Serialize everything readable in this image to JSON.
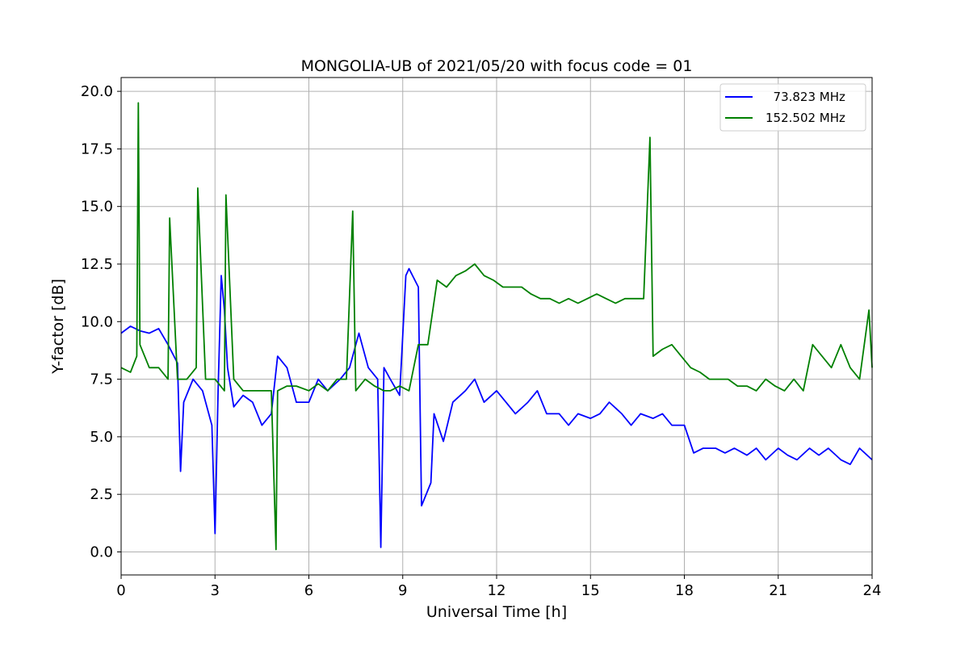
{
  "chart_data": {
    "type": "line",
    "title": "MONGOLIA-UB of 2021/05/20 with focus code = 01",
    "xlabel": "Universal Time [h]",
    "ylabel": "Y-factor [dB]",
    "xlim": [
      0,
      24
    ],
    "ylim": [
      -1.0,
      20.6
    ],
    "xticks": [
      0,
      3,
      6,
      9,
      12,
      15,
      18,
      21,
      24
    ],
    "xtick_labels": [
      "0",
      "3",
      "6",
      "9",
      "12",
      "15",
      "18",
      "21",
      "24"
    ],
    "yticks": [
      0.0,
      2.5,
      5.0,
      7.5,
      10.0,
      12.5,
      15.0,
      17.5,
      20.0
    ],
    "ytick_labels": [
      "0.0",
      "2.5",
      "5.0",
      "7.5",
      "10.0",
      "12.5",
      "15.0",
      "17.5",
      "20.0"
    ],
    "grid": true,
    "legend_position": "top-right",
    "series": [
      {
        "name": "  73.823 MHz",
        "color": "#0000ff",
        "x": [
          0,
          0.3,
          0.6,
          0.9,
          1.2,
          1.5,
          1.8,
          1.9,
          2.0,
          2.3,
          2.6,
          2.9,
          3.0,
          3.1,
          3.2,
          3.3,
          3.4,
          3.6,
          3.9,
          4.2,
          4.5,
          4.8,
          5.0,
          5.3,
          5.6,
          6.0,
          6.3,
          6.6,
          7.0,
          7.3,
          7.6,
          7.9,
          8.2,
          8.3,
          8.4,
          8.6,
          8.9,
          9.1,
          9.2,
          9.5,
          9.6,
          9.9,
          10.0,
          10.3,
          10.6,
          11.0,
          11.3,
          11.6,
          12.0,
          12.3,
          12.6,
          13.0,
          13.3,
          13.6,
          14.0,
          14.3,
          14.6,
          15.0,
          15.3,
          15.6,
          16.0,
          16.3,
          16.6,
          17.0,
          17.3,
          17.6,
          18.0,
          18.3,
          18.6,
          19.0,
          19.3,
          19.6,
          20.0,
          20.3,
          20.6,
          21.0,
          21.3,
          21.6,
          22.0,
          22.3,
          22.6,
          23.0,
          23.3,
          23.6,
          24.0
        ],
        "y": [
          9.5,
          9.8,
          9.6,
          9.5,
          9.7,
          9.0,
          8.2,
          3.5,
          6.5,
          7.5,
          7.0,
          5.5,
          0.8,
          7.0,
          12.0,
          10.5,
          8.0,
          6.3,
          6.8,
          6.5,
          5.5,
          6.0,
          8.5,
          8.0,
          6.5,
          6.5,
          7.5,
          7.0,
          7.5,
          8.0,
          9.5,
          8.0,
          7.5,
          0.2,
          8.0,
          7.5,
          6.8,
          12.0,
          12.3,
          11.5,
          2.0,
          3.0,
          6.0,
          4.8,
          6.5,
          7.0,
          7.5,
          6.5,
          7.0,
          6.5,
          6.0,
          6.5,
          7.0,
          6.0,
          6.0,
          5.5,
          6.0,
          5.8,
          6.0,
          6.5,
          6.0,
          5.5,
          6.0,
          5.8,
          6.0,
          5.5,
          5.5,
          4.3,
          4.5,
          4.5,
          4.3,
          4.5,
          4.2,
          4.5,
          4.0,
          4.5,
          4.2,
          4.0,
          4.5,
          4.2,
          4.5,
          4.0,
          3.8,
          4.5,
          4.0
        ]
      },
      {
        "name": "152.502 MHz",
        "color": "#008000",
        "x": [
          0,
          0.3,
          0.5,
          0.55,
          0.6,
          0.9,
          1.2,
          1.5,
          1.55,
          1.8,
          2.1,
          2.4,
          2.45,
          2.7,
          3.0,
          3.3,
          3.35,
          3.6,
          3.9,
          4.2,
          4.5,
          4.8,
          4.95,
          5.0,
          5.3,
          5.6,
          6.0,
          6.3,
          6.6,
          6.9,
          7.2,
          7.4,
          7.5,
          7.8,
          8.1,
          8.4,
          8.6,
          8.9,
          9.2,
          9.5,
          9.8,
          10.1,
          10.4,
          10.7,
          11.0,
          11.3,
          11.6,
          11.9,
          12.2,
          12.5,
          12.8,
          13.1,
          13.4,
          13.7,
          14.0,
          14.3,
          14.6,
          14.9,
          15.2,
          15.5,
          15.8,
          16.1,
          16.4,
          16.7,
          16.9,
          17.0,
          17.3,
          17.6,
          17.9,
          18.2,
          18.5,
          18.8,
          19.1,
          19.4,
          19.7,
          20.0,
          20.3,
          20.6,
          20.9,
          21.2,
          21.5,
          21.8,
          22.1,
          22.4,
          22.7,
          23.0,
          23.3,
          23.6,
          23.9,
          24.0
        ],
        "y": [
          8.0,
          7.8,
          8.5,
          19.5,
          9.0,
          8.0,
          8.0,
          7.5,
          14.5,
          7.5,
          7.5,
          8.0,
          15.8,
          7.5,
          7.5,
          7.0,
          15.5,
          7.5,
          7.0,
          7.0,
          7.0,
          7.0,
          0.1,
          7.0,
          7.2,
          7.2,
          7.0,
          7.3,
          7.0,
          7.5,
          7.5,
          14.8,
          7.0,
          7.5,
          7.2,
          7.0,
          7.0,
          7.2,
          7.0,
          9.0,
          9.0,
          11.8,
          11.5,
          12.0,
          12.2,
          12.5,
          12.0,
          11.8,
          11.5,
          11.5,
          11.5,
          11.2,
          11.0,
          11.0,
          10.8,
          11.0,
          10.8,
          11.0,
          11.2,
          11.0,
          10.8,
          11.0,
          11.0,
          11.0,
          18.0,
          8.5,
          8.8,
          9.0,
          8.5,
          8.0,
          7.8,
          7.5,
          7.5,
          7.5,
          7.2,
          7.2,
          7.0,
          7.5,
          7.2,
          7.0,
          7.5,
          7.0,
          9.0,
          8.5,
          8.0,
          9.0,
          8.0,
          7.5,
          10.5,
          8.0
        ]
      }
    ]
  }
}
